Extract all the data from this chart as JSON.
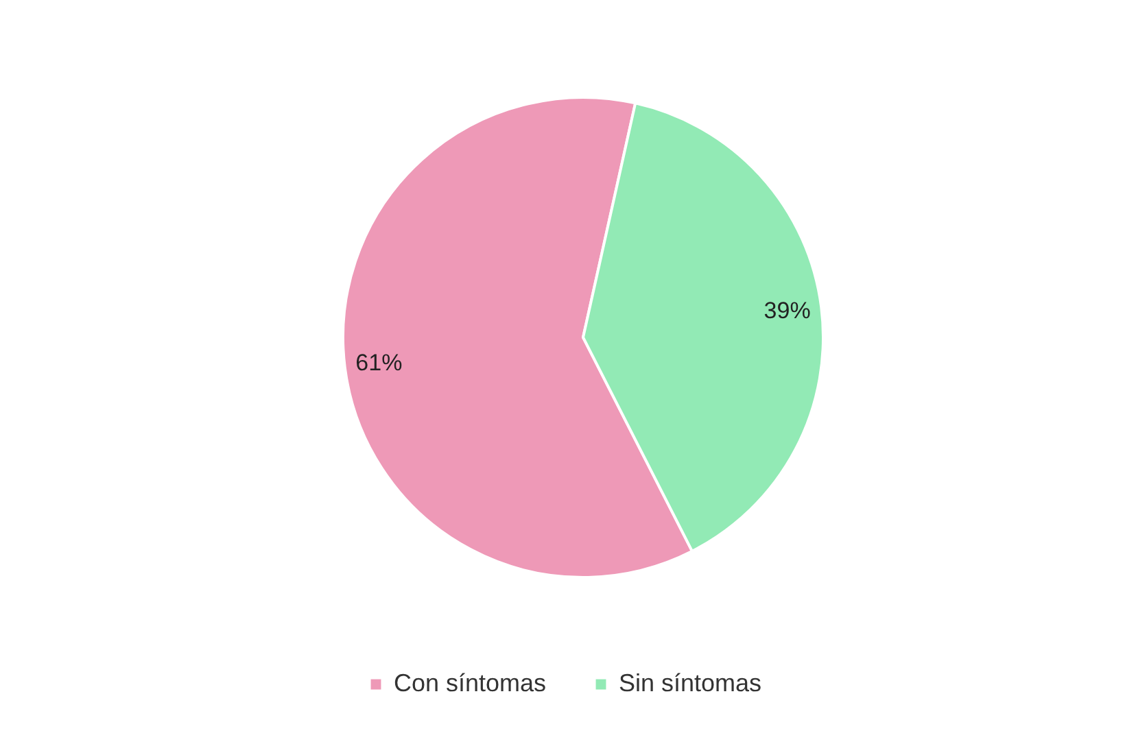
{
  "chart_data": {
    "type": "pie",
    "categories": [
      "Con síntomas",
      "Sin síntomas"
    ],
    "values": [
      61,
      39
    ],
    "colors": [
      "#ee99b7",
      "#92eab5"
    ],
    "value_labels": [
      "61%",
      "39%"
    ],
    "legend": "bottom"
  }
}
